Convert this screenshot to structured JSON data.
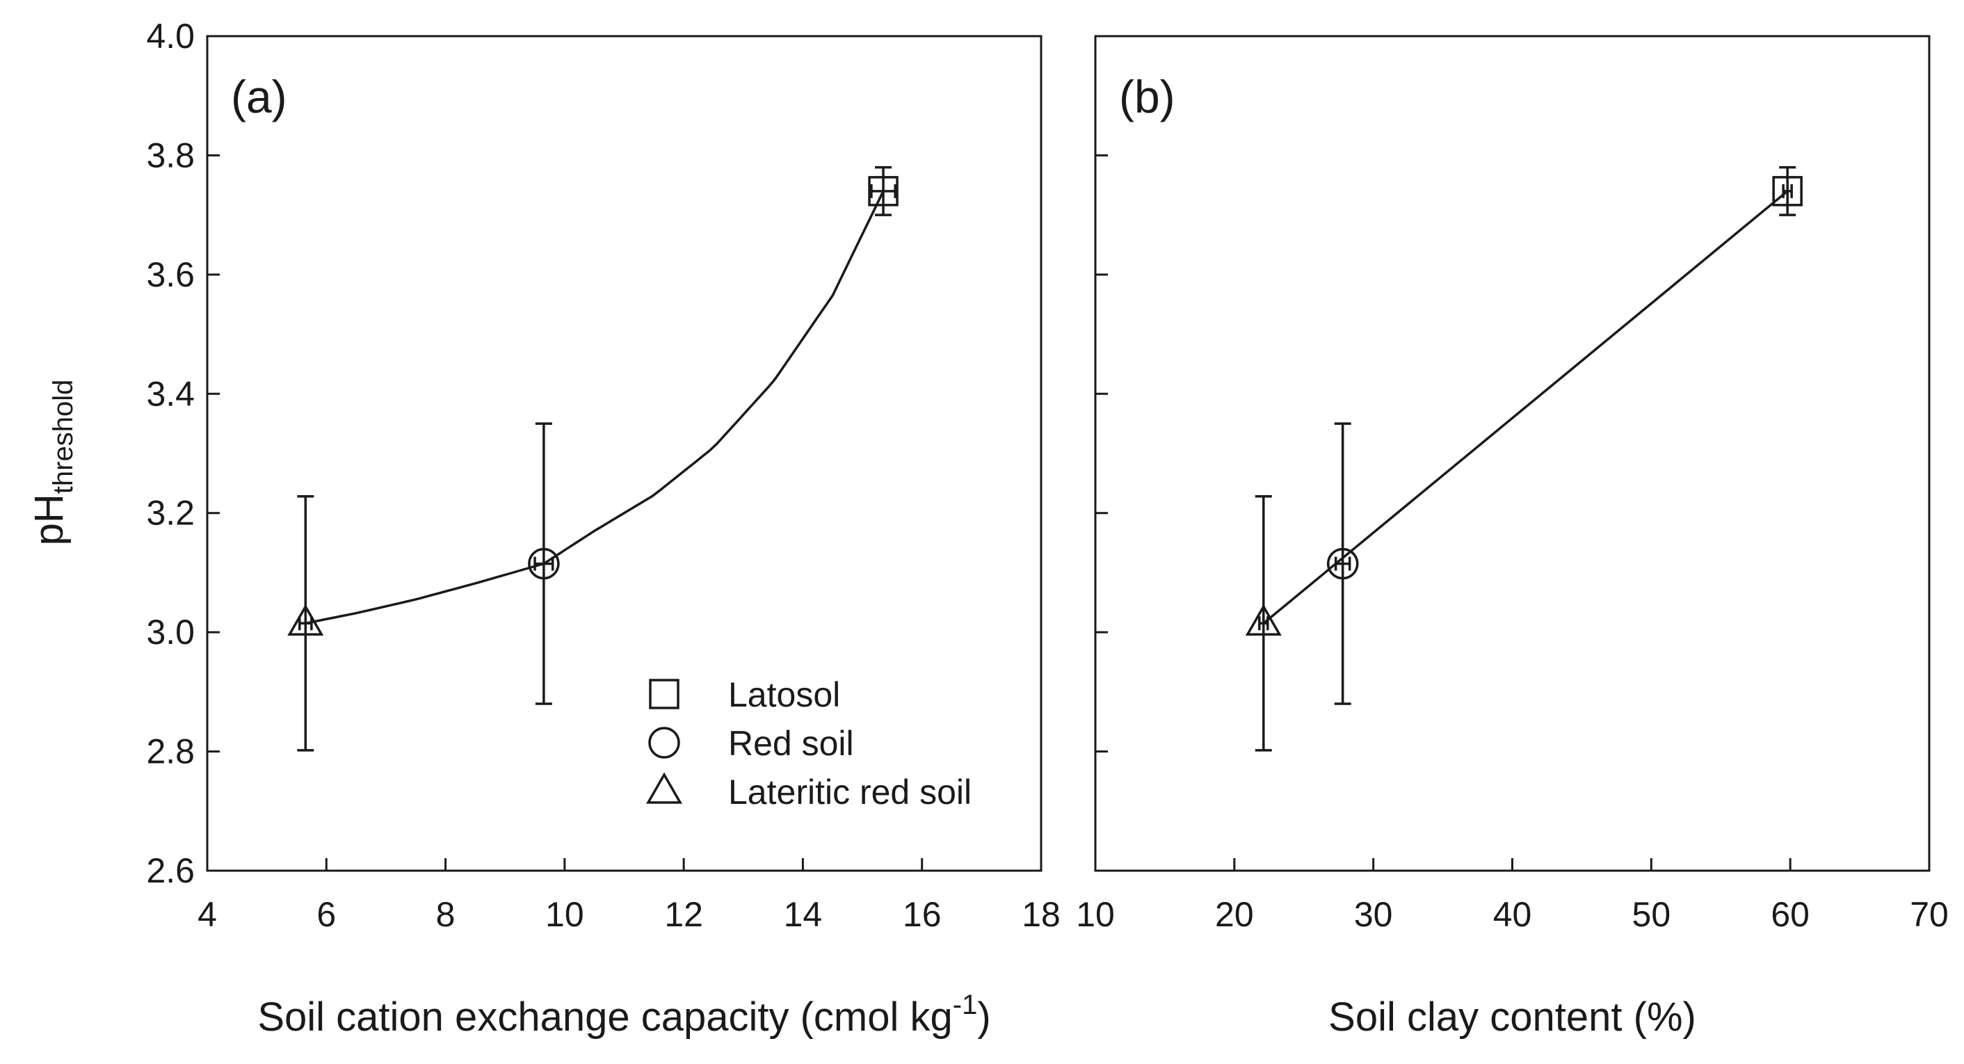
{
  "ylabel": {
    "main": "pH",
    "subscript": "threshold"
  },
  "legend": {
    "items": [
      {
        "name": "Latosol",
        "marker": "square"
      },
      {
        "name": "Red soil",
        "marker": "circle"
      },
      {
        "name": "Lateritic red soil",
        "marker": "triangle"
      }
    ]
  },
  "chart_data": [
    {
      "type": "scatter",
      "panel_label": "(a)",
      "xlabel": {
        "text": "Soil cation exchange capacity (cmol kg",
        "superscript": "-1",
        "suffix": ")"
      },
      "xlim": [
        4,
        18
      ],
      "ylim": [
        2.6,
        4.0
      ],
      "xticks": [
        "4",
        "6",
        "8",
        "10",
        "12",
        "14",
        "16",
        "18"
      ],
      "yticks": [
        "2.6",
        "2.8",
        "3.0",
        "3.2",
        "3.4",
        "3.6",
        "3.8",
        "4.0"
      ],
      "series": [
        {
          "name": "Latosol",
          "marker": "square",
          "x": 15.35,
          "y": 3.74,
          "xerr": 0.2,
          "yerr": 0.04
        },
        {
          "name": "Red soil",
          "marker": "circle",
          "x": 9.65,
          "y": 3.115,
          "xerr": 0.15,
          "yerr": 0.235
        },
        {
          "name": "Lateritic red soil",
          "marker": "triangle",
          "x": 5.65,
          "y": 3.015,
          "xerr": 0.1,
          "yerr": 0.213
        }
      ],
      "fit": {
        "type": "exponential",
        "x": [
          5.65,
          6.5,
          7.5,
          8.5,
          9.65,
          10.5,
          11.5,
          12.5,
          13.5,
          14.5,
          15.35
        ],
        "y": [
          3.015,
          3.032,
          3.055,
          3.082,
          3.115,
          3.17,
          3.23,
          3.31,
          3.42,
          3.565,
          3.74
        ]
      }
    },
    {
      "type": "scatter",
      "panel_label": "(b)",
      "xlabel": {
        "text": "Soil clay content (%)"
      },
      "xlim": [
        10,
        70
      ],
      "ylim": [
        2.6,
        4.0
      ],
      "xticks": [
        "10",
        "20",
        "30",
        "40",
        "50",
        "60",
        "70"
      ],
      "yticks": [
        "2.6",
        "2.8",
        "3.0",
        "3.2",
        "3.4",
        "3.6",
        "3.8",
        "4.0"
      ],
      "series": [
        {
          "name": "Latosol",
          "marker": "square",
          "x": 59.8,
          "y": 3.74,
          "xerr": 0.3,
          "yerr": 0.04
        },
        {
          "name": "Red soil",
          "marker": "circle",
          "x": 27.8,
          "y": 3.115,
          "xerr": 0.5,
          "yerr": 0.235
        },
        {
          "name": "Lateritic red soil",
          "marker": "triangle",
          "x": 22.1,
          "y": 3.015,
          "xerr": 0.3,
          "yerr": 0.213
        }
      ],
      "fit": {
        "type": "linear",
        "x": [
          22.1,
          59.8
        ],
        "y": [
          3.015,
          3.74
        ]
      }
    }
  ]
}
